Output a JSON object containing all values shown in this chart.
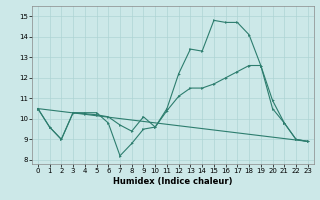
{
  "xlabel": "Humidex (Indice chaleur)",
  "bg_color": "#cce8e8",
  "line_color": "#2d7d6e",
  "xlim": [
    -0.5,
    23.5
  ],
  "ylim": [
    7.8,
    15.5
  ],
  "yticks": [
    8,
    9,
    10,
    11,
    12,
    13,
    14,
    15
  ],
  "xticks": [
    0,
    1,
    2,
    3,
    4,
    5,
    6,
    7,
    8,
    9,
    10,
    11,
    12,
    13,
    14,
    15,
    16,
    17,
    18,
    19,
    20,
    21,
    22,
    23
  ],
  "line1_x": [
    0,
    1,
    2,
    3,
    4,
    5,
    6,
    7,
    8,
    9,
    10,
    11,
    12,
    13,
    14,
    15,
    16,
    17,
    18,
    19,
    20,
    21,
    22,
    23
  ],
  "line1_y": [
    10.5,
    9.6,
    9.0,
    10.3,
    10.3,
    10.3,
    9.8,
    8.2,
    8.8,
    9.5,
    9.6,
    10.5,
    12.2,
    13.4,
    13.3,
    14.8,
    14.7,
    14.7,
    14.1,
    12.6,
    10.9,
    9.8,
    9.0,
    8.9
  ],
  "line2_x": [
    0,
    1,
    2,
    3,
    4,
    5,
    6,
    7,
    8,
    9,
    10,
    11,
    12,
    13,
    14,
    15,
    16,
    17,
    18,
    19,
    20,
    21,
    22,
    23
  ],
  "line2_y": [
    10.5,
    9.6,
    9.0,
    10.3,
    10.25,
    10.2,
    10.1,
    9.7,
    9.4,
    10.1,
    9.6,
    10.4,
    11.1,
    11.5,
    11.5,
    11.7,
    12.0,
    12.3,
    12.6,
    12.6,
    10.5,
    9.8,
    9.0,
    8.9
  ],
  "line3_x": [
    0,
    23
  ],
  "line3_y": [
    10.5,
    8.9
  ]
}
